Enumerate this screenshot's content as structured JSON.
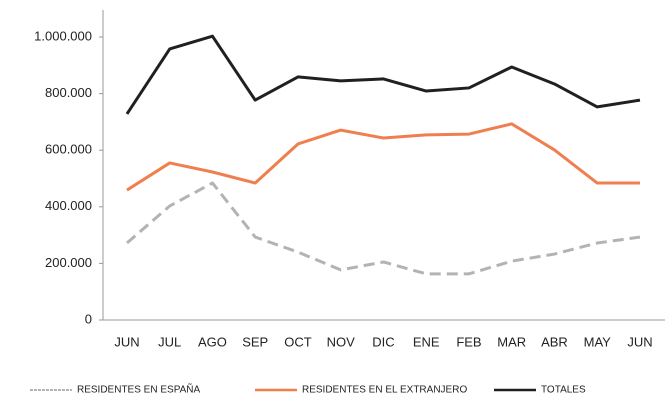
{
  "chart_data": {
    "type": "line",
    "categories": [
      "JUN",
      "JUL",
      "AGO",
      "SEP",
      "OCT",
      "NOV",
      "DIC",
      "ENE",
      "FEB",
      "MAR",
      "ABR",
      "MAY",
      "JUN"
    ],
    "series": [
      {
        "name": "RESIDENTES EN ESPAÑA",
        "color": "#b3b3b3",
        "dashed": true,
        "values": [
          272000,
          403000,
          484000,
          293000,
          240000,
          177000,
          205000,
          163000,
          163000,
          208000,
          233000,
          272000,
          293000
        ]
      },
      {
        "name": "RESIDENTES EN EL EXTRANJERO",
        "color": "#f07f4f",
        "dashed": false,
        "values": [
          459000,
          555000,
          523000,
          484000,
          622000,
          671000,
          643000,
          654000,
          657000,
          693000,
          601000,
          484000,
          484000
        ]
      },
      {
        "name": "TOTALES",
        "color": "#231f20",
        "dashed": false,
        "values": [
          728000,
          958000,
          1003000,
          777000,
          859000,
          845000,
          852000,
          809000,
          820000,
          894000,
          834000,
          753000,
          777000
        ]
      }
    ],
    "ylim": [
      0,
      1000000
    ],
    "yticks": [
      0,
      {
        "value": 200000,
        "label": "200.000"
      },
      {
        "value": 400000,
        "label": "400.000"
      },
      {
        "value": 600000,
        "label": "600.000"
      },
      {
        "value": 800000,
        "label": "800.000"
      },
      {
        "value": 1000000,
        "label": "1.000.000"
      }
    ],
    "grid": false,
    "legend": "bottom"
  }
}
